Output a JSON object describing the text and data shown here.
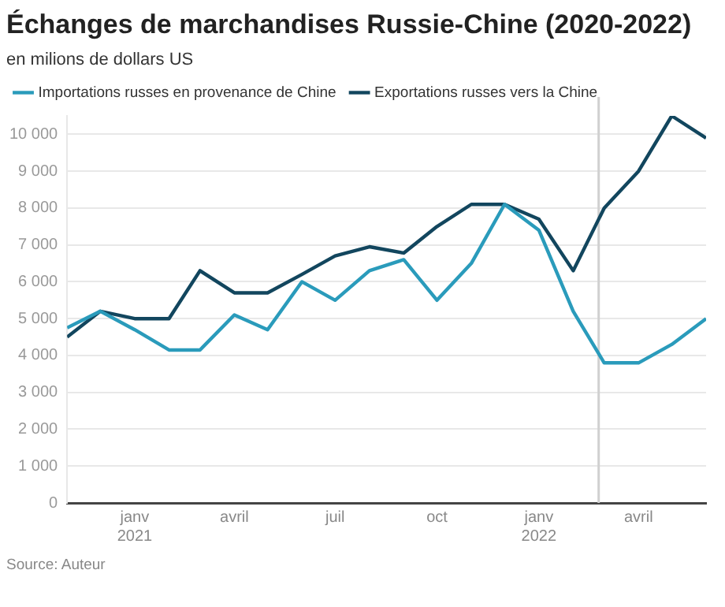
{
  "chart_data": {
    "type": "line",
    "title": "Échanges de marchandises Russie-Chine (2020-2022)",
    "subtitle": "en milions de dollars US",
    "x": [
      "2020-11",
      "2020-12",
      "2021-01",
      "2021-02",
      "2021-03",
      "2021-04",
      "2021-05",
      "2021-06",
      "2021-07",
      "2021-08",
      "2021-09",
      "2021-10",
      "2021-11",
      "2021-12",
      "2022-01",
      "2022-02",
      "2022-03",
      "2022-04",
      "2022-05",
      "2022-06"
    ],
    "series": [
      {
        "name": "Importations russes en provenance de Chine",
        "color": "#2a9bbb",
        "values": [
          4750,
          5200,
          4700,
          4150,
          4150,
          5100,
          4700,
          6000,
          5500,
          6300,
          6600,
          5500,
          6500,
          8100,
          7400,
          5200,
          3800,
          3800,
          4300,
          5000
        ]
      },
      {
        "name": "Exportations russes vers la Chine",
        "color": "#12465e",
        "values": [
          4500,
          5200,
          5000,
          5000,
          6300,
          5700,
          5700,
          6200,
          6700,
          6950,
          6780,
          7500,
          8100,
          8100,
          7700,
          6300,
          8000,
          9000,
          10500,
          9900
        ]
      }
    ],
    "xlim": [
      "2020-11",
      "2022-06"
    ],
    "xticks": [
      {
        "value": "2021-01",
        "label": "janv\n2021"
      },
      {
        "value": "2021-04",
        "label": "avril"
      },
      {
        "value": "2021-07",
        "label": "juil"
      },
      {
        "value": "2021-10",
        "label": "oct"
      },
      {
        "value": "2022-01",
        "label": "janv\n2022"
      },
      {
        "value": "2022-04",
        "label": "avril"
      }
    ],
    "ylim": [
      0,
      10500
    ],
    "yticks": [
      0,
      {
        "value": 1000,
        "label": "1 000"
      },
      {
        "value": 2000,
        "label": "2 000"
      },
      {
        "value": 3000,
        "label": "3 000"
      },
      {
        "value": 4000,
        "label": "4 000"
      },
      {
        "value": 5000,
        "label": "5 000"
      },
      {
        "value": 6000,
        "label": "6 000"
      },
      {
        "value": 7000,
        "label": "7 000"
      },
      {
        "value": 8000,
        "label": "8 000"
      },
      {
        "value": 9000,
        "label": "9 000"
      },
      {
        "value": 10000,
        "label": "10 000"
      }
    ],
    "ref_lines": [
      {
        "axis": "x",
        "value": "2022-02-24",
        "color": "#d0d0d0"
      }
    ],
    "grid": "y",
    "legend": "top left",
    "marker": "none",
    "line_style": "solid",
    "annotations": [
      "Source: Auteur"
    ]
  }
}
